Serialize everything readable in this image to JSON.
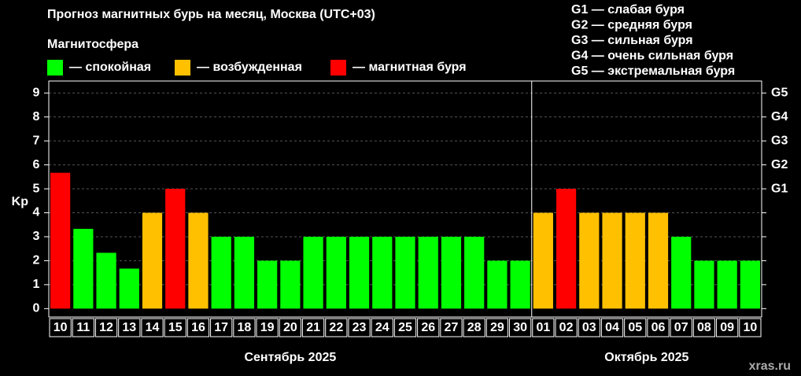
{
  "chart_data": {
    "type": "bar",
    "title": "Прогноз магнитных бурь на месяц, Москва (UTC+03)",
    "legend_title": "Магнитосфера",
    "legend": [
      {
        "name": "— спокойная",
        "color": "#00ff00"
      },
      {
        "name": "— возбужденная",
        "color": "#ffc000"
      },
      {
        "name": "— магнитная буря",
        "color": "#ff0000"
      }
    ],
    "scale_notes": [
      "G1 — слабая буря",
      "G2 — средняя буря",
      "G3 — сильная буря",
      "G4 — очень сильная буря",
      "G5 — экстремальная буря"
    ],
    "y_label": "Kp",
    "watermark": "xras.ru",
    "groups": [
      {
        "label": "Сентябрь 2025",
        "categories": [
          "10",
          "11",
          "12",
          "13",
          "14",
          "15",
          "16",
          "17",
          "18",
          "19",
          "20",
          "21",
          "22",
          "23",
          "24",
          "25",
          "26",
          "27",
          "28",
          "29",
          "30"
        ],
        "values": [
          5.67,
          3.33,
          2.33,
          1.67,
          4,
          5,
          4,
          3,
          3,
          2,
          2,
          3,
          3,
          3,
          3,
          3,
          3,
          3,
          3,
          2,
          2
        ],
        "colors": [
          "#ff0000",
          "#00ff00",
          "#00ff00",
          "#00ff00",
          "#ffc000",
          "#ff0000",
          "#ffc000",
          "#00ff00",
          "#00ff00",
          "#00ff00",
          "#00ff00",
          "#00ff00",
          "#00ff00",
          "#00ff00",
          "#00ff00",
          "#00ff00",
          "#00ff00",
          "#00ff00",
          "#00ff00",
          "#00ff00",
          "#00ff00"
        ]
      },
      {
        "label": "Октябрь 2025",
        "categories": [
          "01",
          "02",
          "03",
          "04",
          "05",
          "06",
          "07",
          "08",
          "09",
          "10"
        ],
        "values": [
          4,
          5,
          4,
          4,
          4,
          4,
          3,
          2,
          2,
          2
        ],
        "colors": [
          "#ffc000",
          "#ff0000",
          "#ffc000",
          "#ffc000",
          "#ffc000",
          "#ffc000",
          "#00ff00",
          "#00ff00",
          "#00ff00",
          "#00ff00"
        ]
      }
    ],
    "ylim": [
      -0.35,
      9.5
    ],
    "yticks": [
      0,
      1,
      2,
      3,
      4,
      5,
      6,
      7,
      8,
      9
    ],
    "y2ticks": [
      {
        "value": 5,
        "label": "G1"
      },
      {
        "value": 6,
        "label": "G2"
      },
      {
        "value": 7,
        "label": "G3"
      },
      {
        "value": 8,
        "label": "G4"
      },
      {
        "value": 9,
        "label": "G5"
      }
    ],
    "grid": true
  }
}
